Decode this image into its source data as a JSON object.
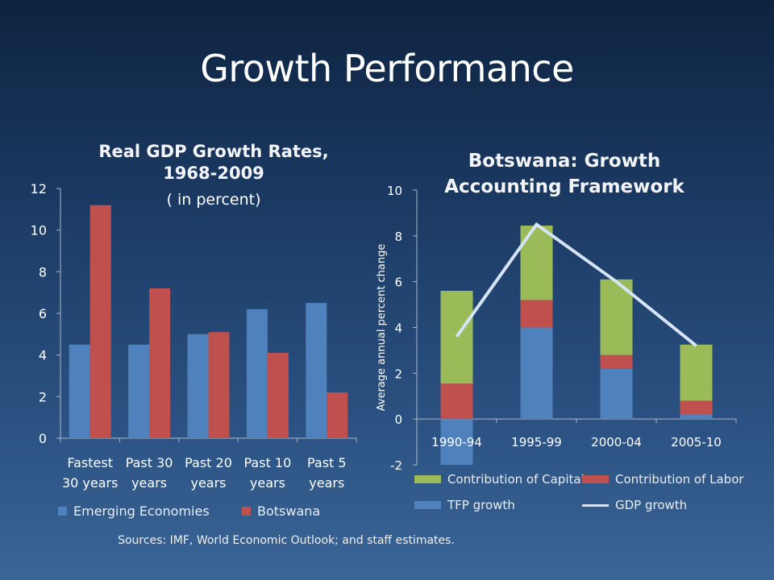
{
  "slide": {
    "title": "Growth Performance",
    "sources": "Sources: IMF, World Economic Outlook; and staff estimates."
  },
  "colors": {
    "blue": "#4f81bd",
    "red": "#c0504d",
    "green": "#9bbb59",
    "line": "#d6e4f5",
    "axis": "#a9b9cc"
  },
  "chart_data": [
    {
      "type": "bar",
      "title": "Real GDP Growth Rates, 1968-2009",
      "title_lines": [
        "Real GDP Growth Rates,",
        "1968-2009"
      ],
      "subtitle": "( in percent)",
      "categories": [
        [
          "Fastest",
          "30 years"
        ],
        [
          "Past 30",
          "years"
        ],
        [
          "Past 20",
          "years"
        ],
        [
          "Past 10",
          "years"
        ],
        [
          "Past 5",
          "years"
        ]
      ],
      "series": [
        {
          "name": "Emerging Economies",
          "color": "#4f81bd",
          "values": [
            4.5,
            4.5,
            5.0,
            6.2,
            6.5
          ]
        },
        {
          "name": "Botswana",
          "color": "#c0504d",
          "values": [
            11.2,
            7.2,
            5.1,
            4.1,
            2.2
          ]
        }
      ],
      "ylim": [
        0,
        12
      ],
      "yticks": [
        0,
        2,
        4,
        6,
        8,
        10,
        12
      ],
      "grid": false,
      "legend": "bottom"
    },
    {
      "type": "bar",
      "stacked": true,
      "title": "Botswana: Growth Accounting Framework",
      "title_lines": [
        "Botswana: Growth",
        "Accounting Framework"
      ],
      "ylabel": "Average annual percent change",
      "categories": [
        "1990-94",
        "1995-99",
        "2000-04",
        "2005-10"
      ],
      "series": [
        {
          "name": "TFP growth",
          "type": "bar",
          "color": "#4f81bd",
          "values": [
            -2.0,
            4.0,
            2.2,
            0.2
          ]
        },
        {
          "name": "Contribution of Labor",
          "type": "bar",
          "color": "#c0504d",
          "values": [
            1.55,
            1.2,
            0.6,
            0.6
          ]
        },
        {
          "name": "Contribution of Capital",
          "type": "bar",
          "color": "#9bbb59",
          "values": [
            4.05,
            3.25,
            3.3,
            2.45
          ]
        },
        {
          "name": "GDP growth",
          "type": "line",
          "color": "#d6e4f5",
          "values": [
            3.6,
            8.5,
            6.0,
            3.2
          ]
        }
      ],
      "ylim": [
        -2,
        10
      ],
      "yticks": [
        -2,
        0,
        2,
        4,
        6,
        8,
        10
      ],
      "grid": false,
      "legend": "bottom"
    }
  ]
}
